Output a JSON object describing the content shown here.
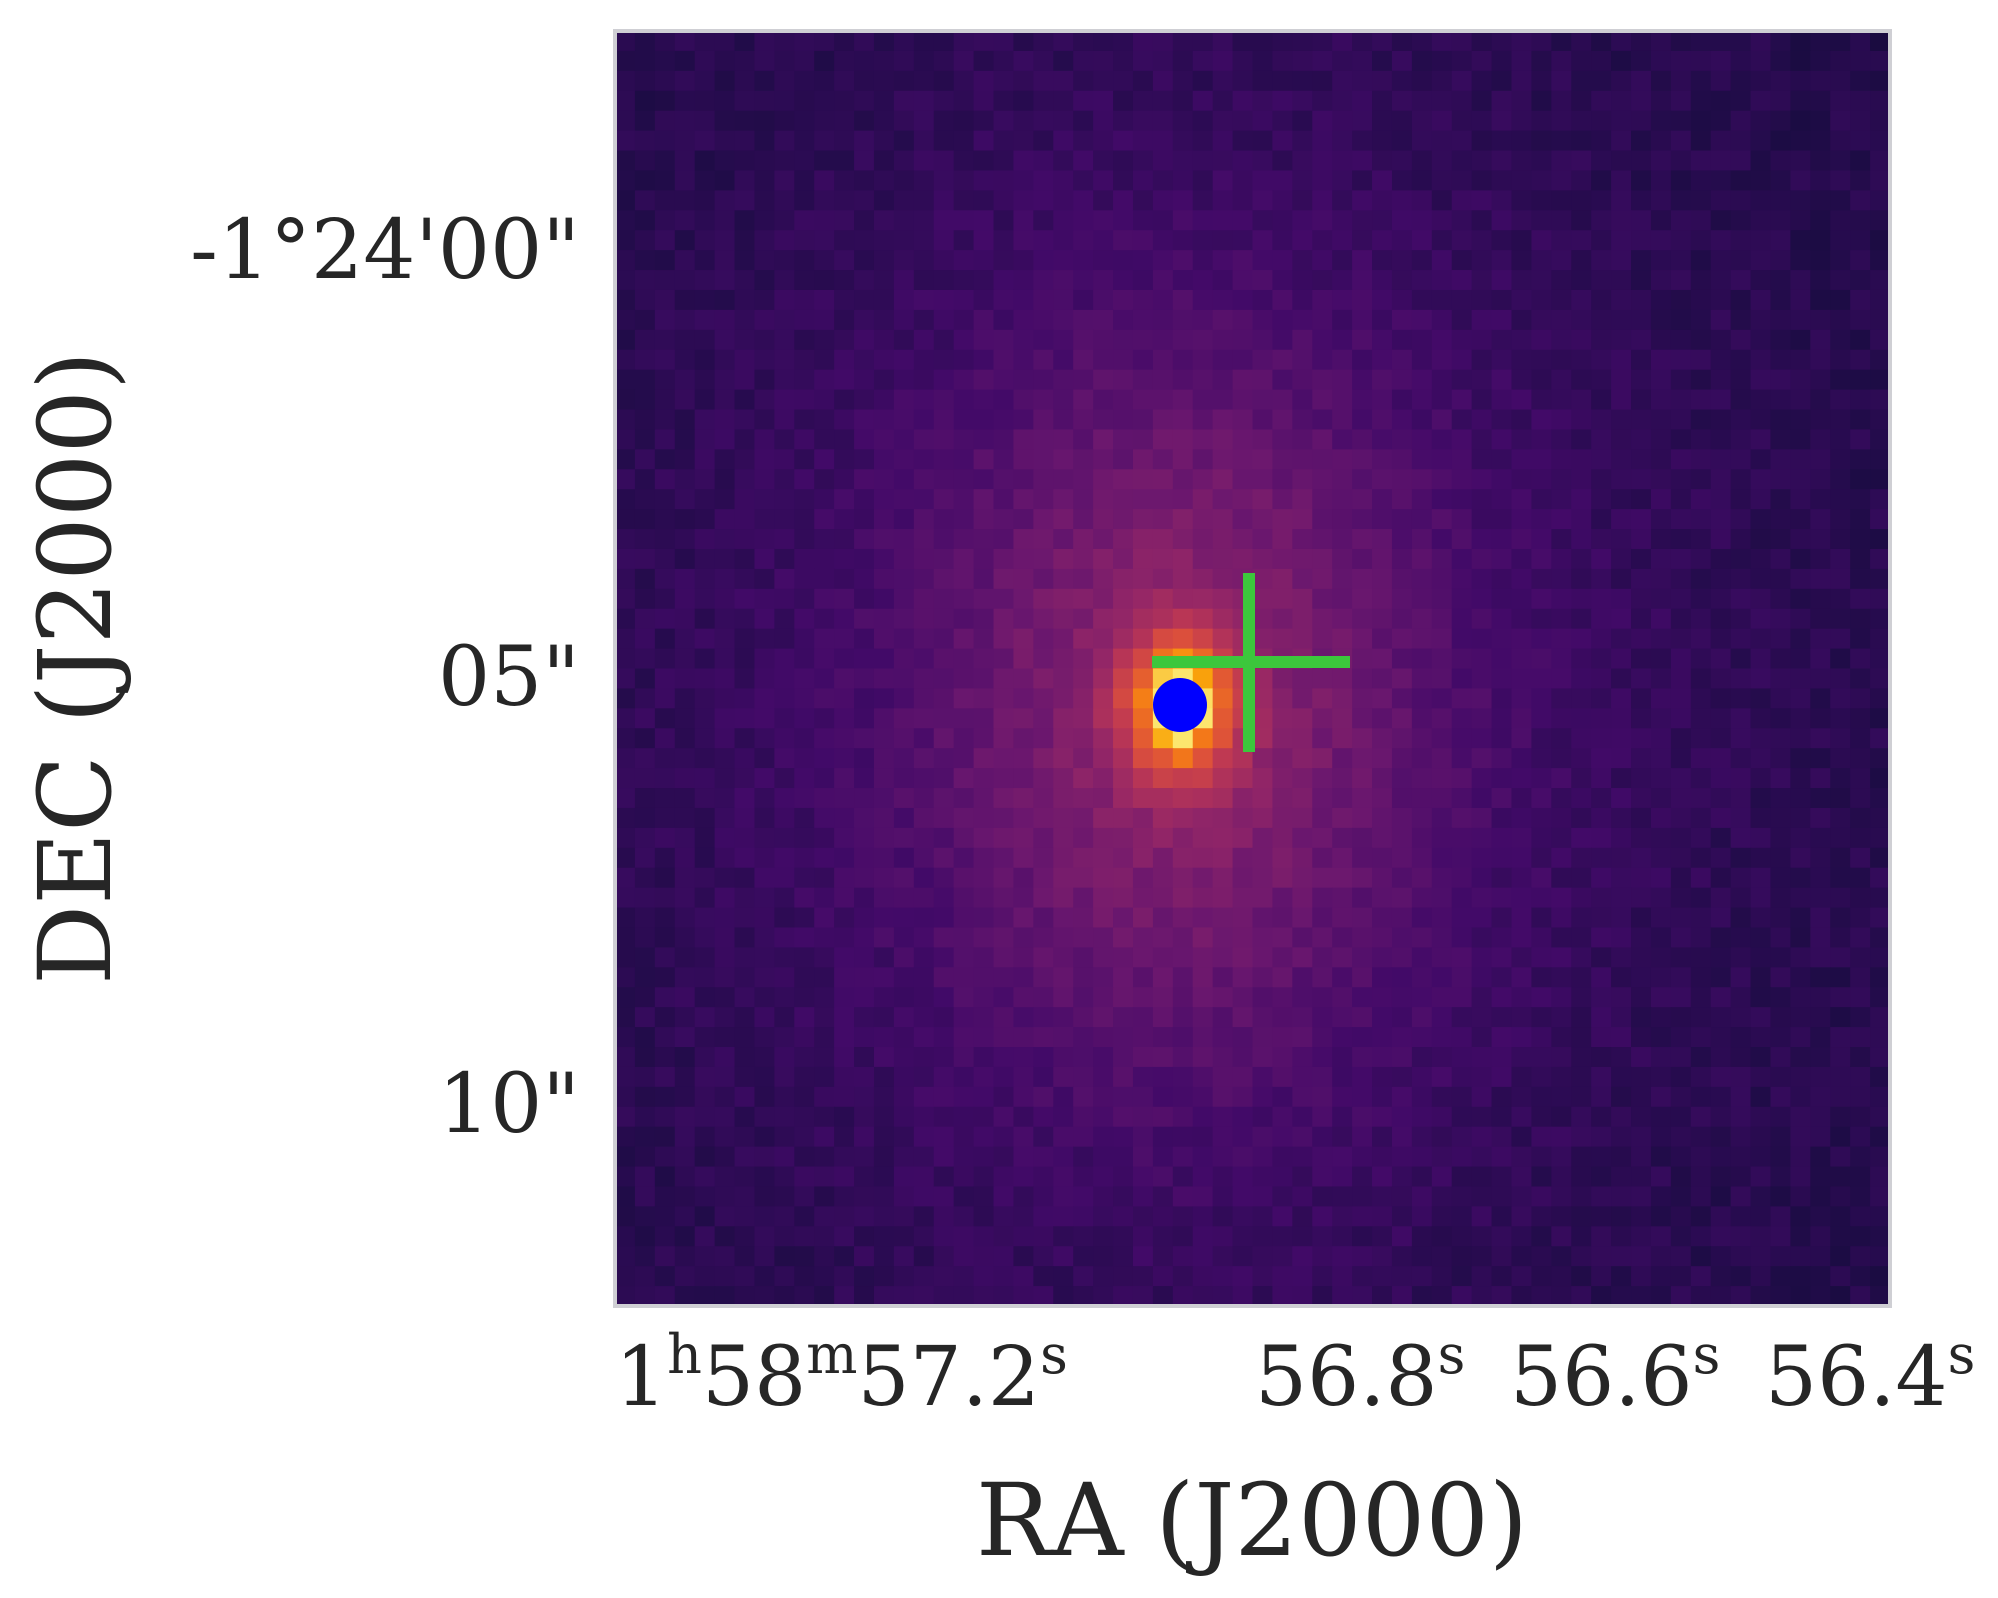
{
  "chart_data": {
    "type": "heatmap",
    "colormap": "inferno",
    "grid": false,
    "xlabel": "RA (J2000)",
    "ylabel": "DEC (J2000)",
    "x_ticks": [
      {
        "value": "57.2",
        "prefix_h": "1",
        "sup_h": "h",
        "mid_m": "58",
        "sup_m": "m",
        "num": "57.2",
        "sup_s": "s"
      },
      {
        "value": "56.8",
        "num": "56.8",
        "sup_s": "s"
      },
      {
        "value": "56.6",
        "num": "56.6",
        "sup_s": "s"
      },
      {
        "value": "56.4",
        "num": "56.4",
        "sup_s": "s"
      }
    ],
    "y_ticks": [
      {
        "label": "-1°24'00\""
      },
      {
        "label": "05\""
      },
      {
        "label": "10\""
      }
    ],
    "markers": [
      {
        "kind": "circle",
        "color": "#0000ff"
      },
      {
        "kind": "cross",
        "color": "#3cc73c"
      }
    ],
    "frame_color": "#cfcfd4"
  }
}
